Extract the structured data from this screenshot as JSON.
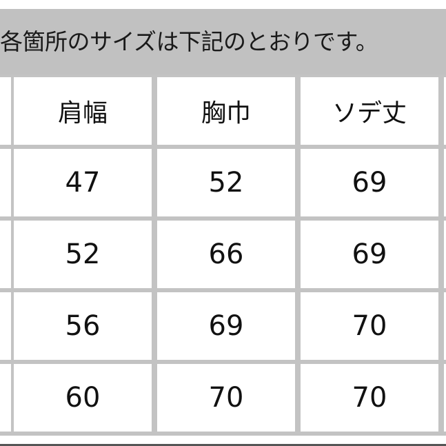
{
  "banner": {
    "text": "各箇所のサイズは下記のとおりです。"
  },
  "table": {
    "headers": [
      "肩幅",
      "胸巾",
      "ソデ丈"
    ],
    "rows": [
      [
        "47",
        "52",
        "69"
      ],
      [
        "52",
        "66",
        "69"
      ],
      [
        "56",
        "69",
        "70"
      ],
      [
        "60",
        "70",
        "70"
      ]
    ]
  }
}
